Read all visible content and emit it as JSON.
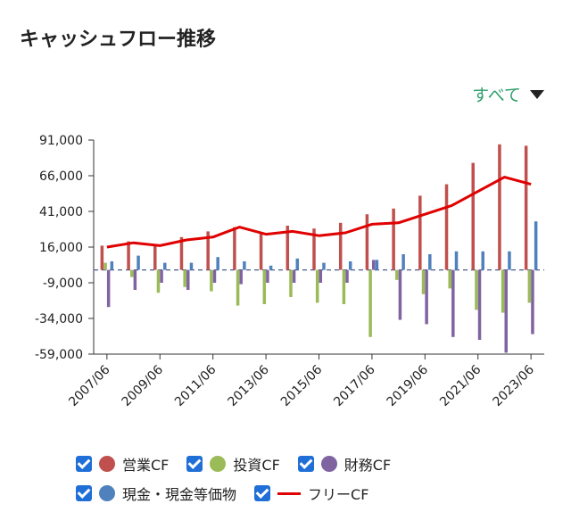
{
  "page": {
    "title": "キャッシュフロー推移",
    "filter_label": "すべて"
  },
  "colors": {
    "op": "#c0504d",
    "inv": "#9bbb59",
    "fin": "#8064a2",
    "cash": "#4f81bd",
    "free": "#e00000"
  },
  "chart_data": {
    "type": "bar",
    "title": "",
    "xlabel": "",
    "ylabel": "",
    "ylim": [
      -59000,
      91000
    ],
    "yticks": [
      91000,
      66000,
      41000,
      16000,
      -9000,
      -34000,
      -59000
    ],
    "ytick_labels": [
      "91,000",
      "66,000",
      "41,000",
      "16,000",
      "-9,000",
      "-34,000",
      "-59,000"
    ],
    "categories": [
      "2007/06",
      "2008/06",
      "2009/06",
      "2010/06",
      "2011/06",
      "2012/06",
      "2013/06",
      "2014/06",
      "2015/06",
      "2016/06",
      "2017/06",
      "2018/06",
      "2019/06",
      "2020/06",
      "2021/06",
      "2022/06",
      "2023/06"
    ],
    "xtick_labels": [
      "2007/06",
      "2009/06",
      "2011/06",
      "2013/06",
      "2015/06",
      "2017/06",
      "2019/06",
      "2021/06",
      "2023/06"
    ],
    "series": [
      {
        "name": "営業CF",
        "kind": "bar",
        "values": [
          17000,
          20000,
          17000,
          23000,
          27000,
          30000,
          26000,
          31000,
          29000,
          33000,
          39000,
          43000,
          52000,
          60000,
          75000,
          88000,
          87000
        ]
      },
      {
        "name": "投資CF",
        "kind": "bar",
        "values": [
          5000,
          -5000,
          -16000,
          -12000,
          -15000,
          -25000,
          -24000,
          -19000,
          -23000,
          -24000,
          -47000,
          -7000,
          -17000,
          -13000,
          -28000,
          -30000,
          -23000
        ]
      },
      {
        "name": "財務CF",
        "kind": "bar",
        "values": [
          -26000,
          -14000,
          -9000,
          -14000,
          -9000,
          -10000,
          -9000,
          -9000,
          -9000,
          -9000,
          7000,
          -35000,
          -38000,
          -47000,
          -49000,
          -58000,
          -45000
        ]
      },
      {
        "name": "現金・現金等価物",
        "kind": "bar",
        "values": [
          6000,
          10000,
          5000,
          5000,
          9000,
          6000,
          3000,
          8000,
          5000,
          6000,
          7000,
          11000,
          11000,
          13000,
          13000,
          13000,
          34000
        ]
      },
      {
        "name": "フリーCF",
        "kind": "line",
        "values": [
          16000,
          19000,
          17000,
          21000,
          23000,
          30000,
          25000,
          27000,
          24000,
          26000,
          32000,
          33000,
          39000,
          45000,
          55000,
          65000,
          60000
        ]
      }
    ],
    "grid": false,
    "legend_position": "bottom"
  },
  "legend": [
    {
      "label": "営業CF",
      "swatch": "dot",
      "color_key": "op"
    },
    {
      "label": "投資CF",
      "swatch": "dot",
      "color_key": "inv"
    },
    {
      "label": "財務CF",
      "swatch": "dot",
      "color_key": "fin"
    },
    {
      "label": "現金・現金等価物",
      "swatch": "dot",
      "color_key": "cash"
    },
    {
      "label": "フリーCF",
      "swatch": "line",
      "color_key": "free"
    }
  ]
}
